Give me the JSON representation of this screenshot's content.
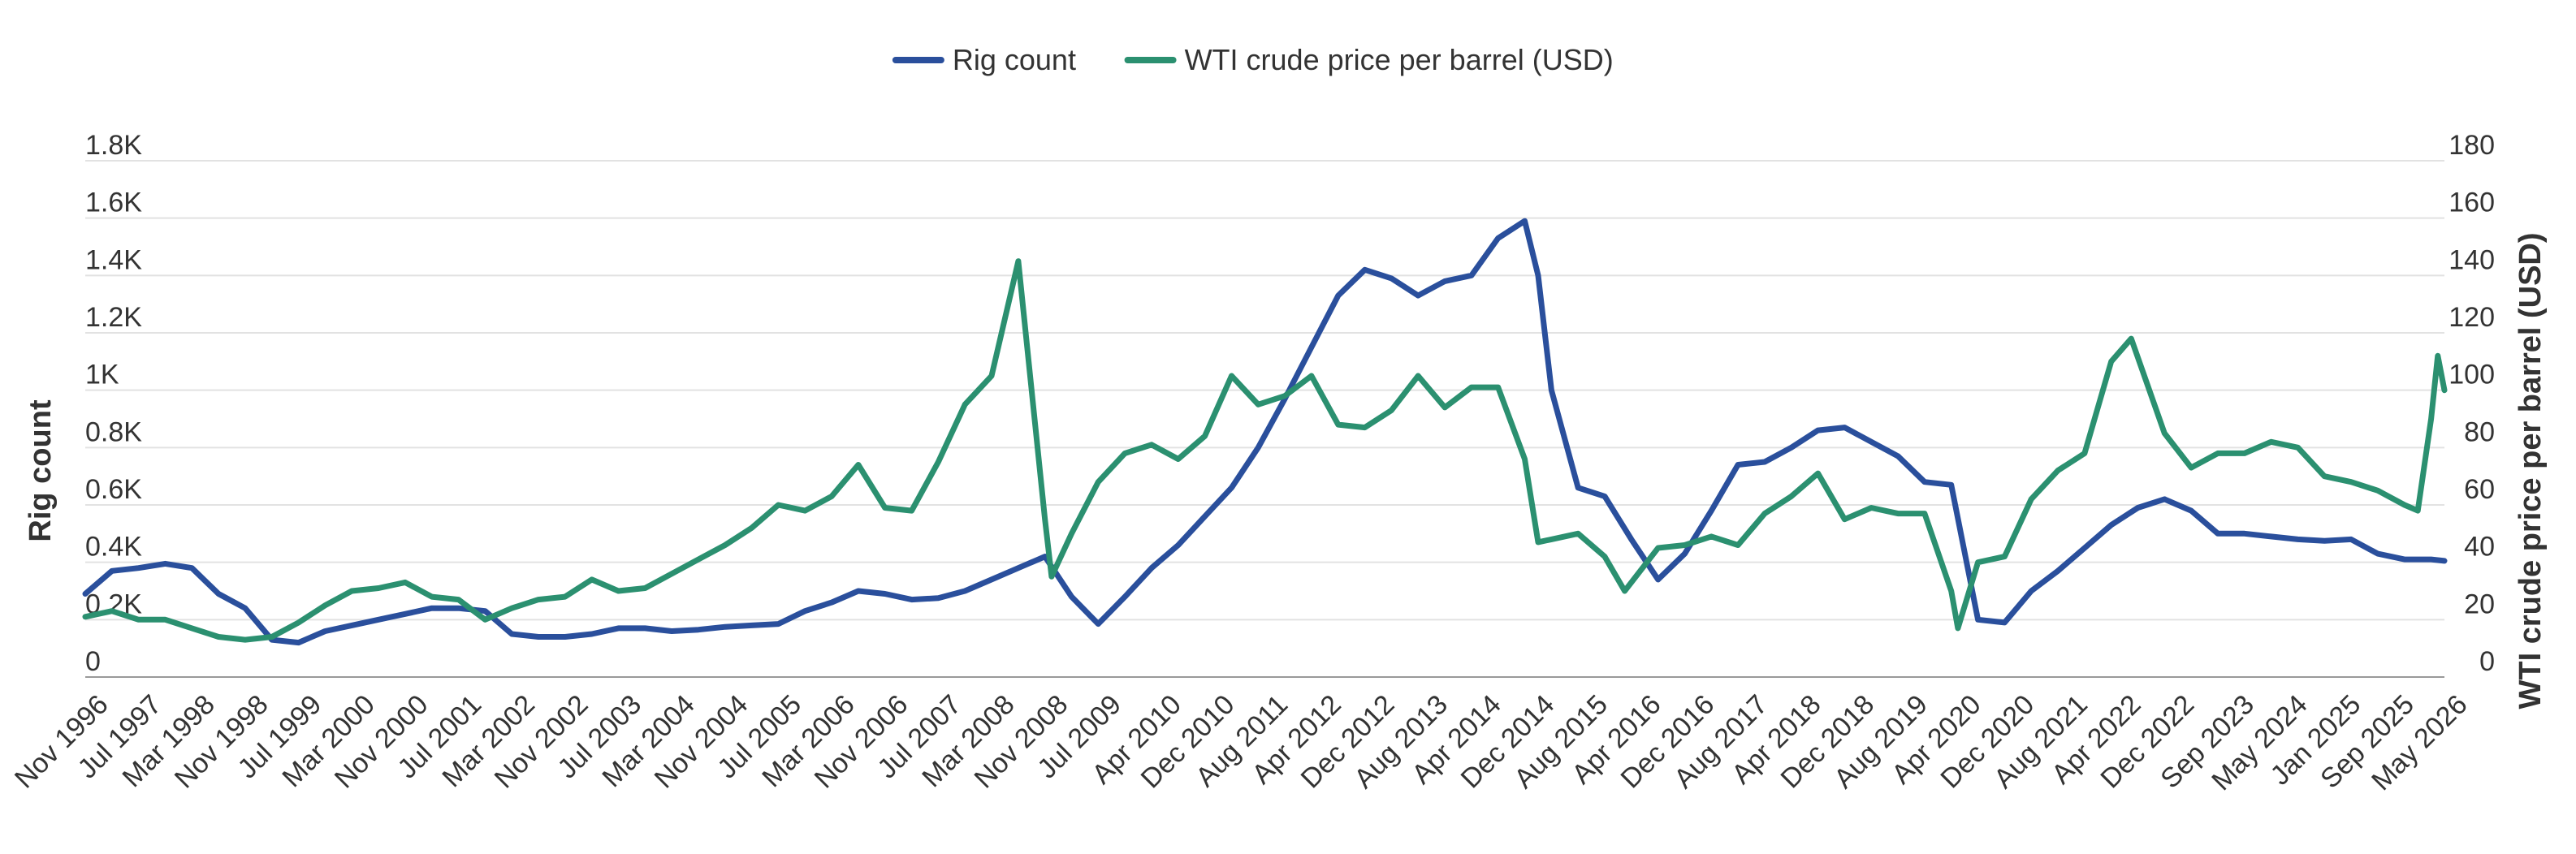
{
  "chart_data": {
    "type": "line",
    "title": "",
    "legend_position": "top-center",
    "grid": true,
    "series": [
      {
        "name": "Rig count",
        "axis": "left",
        "color": "#2a4f9c",
        "points": [
          [
            "Nov 1996",
            290
          ],
          [
            "Mar 1997",
            370
          ],
          [
            "Jul 1997",
            380
          ],
          [
            "Nov 1997",
            395
          ],
          [
            "Mar 1998",
            380
          ],
          [
            "Jul 1998",
            290
          ],
          [
            "Nov 1998",
            240
          ],
          [
            "Mar 1999",
            130
          ],
          [
            "Jul 1999",
            120
          ],
          [
            "Nov 1999",
            160
          ],
          [
            "Mar 2000",
            180
          ],
          [
            "Jul 2000",
            200
          ],
          [
            "Nov 2000",
            220
          ],
          [
            "Mar 2001",
            240
          ],
          [
            "Jul 2001",
            240
          ],
          [
            "Nov 2001",
            230
          ],
          [
            "Mar 2002",
            150
          ],
          [
            "Jul 2002",
            140
          ],
          [
            "Nov 2002",
            140
          ],
          [
            "Mar 2003",
            150
          ],
          [
            "Jul 2003",
            170
          ],
          [
            "Nov 2003",
            170
          ],
          [
            "Mar 2004",
            160
          ],
          [
            "Jul 2004",
            165
          ],
          [
            "Nov 2004",
            175
          ],
          [
            "Mar 2005",
            180
          ],
          [
            "Jul 2005",
            185
          ],
          [
            "Nov 2005",
            230
          ],
          [
            "Mar 2006",
            260
          ],
          [
            "Jul 2006",
            300
          ],
          [
            "Nov 2006",
            290
          ],
          [
            "Mar 2007",
            270
          ],
          [
            "Jul 2007",
            275
          ],
          [
            "Nov 2007",
            300
          ],
          [
            "Mar 2008",
            340
          ],
          [
            "Jul 2008",
            380
          ],
          [
            "Nov 2008",
            420
          ],
          [
            "Mar 2009",
            280
          ],
          [
            "Jul 2009",
            185
          ],
          [
            "Nov 2009",
            280
          ],
          [
            "Mar 2010",
            380
          ],
          [
            "Jul 2010",
            460
          ],
          [
            "Nov 2010",
            560
          ],
          [
            "Mar 2011",
            660
          ],
          [
            "Jul 2011",
            800
          ],
          [
            "Nov 2011",
            970
          ],
          [
            "Mar 2012",
            1150
          ],
          [
            "Jul 2012",
            1330
          ],
          [
            "Nov 2012",
            1420
          ],
          [
            "Mar 2013",
            1390
          ],
          [
            "Jul 2013",
            1330
          ],
          [
            "Nov 2013",
            1380
          ],
          [
            "Mar 2014",
            1400
          ],
          [
            "Jul 2014",
            1530
          ],
          [
            "Nov 2014",
            1590
          ],
          [
            "Jan 2015",
            1400
          ],
          [
            "Mar 2015",
            1000
          ],
          [
            "Jul 2015",
            660
          ],
          [
            "Nov 2015",
            630
          ],
          [
            "Mar 2016",
            480
          ],
          [
            "Jul 2016",
            340
          ],
          [
            "Nov 2016",
            430
          ],
          [
            "Mar 2017",
            580
          ],
          [
            "Jul 2017",
            740
          ],
          [
            "Nov 2017",
            750
          ],
          [
            "Mar 2018",
            800
          ],
          [
            "Jul 2018",
            860
          ],
          [
            "Nov 2018",
            870
          ],
          [
            "Mar 2019",
            820
          ],
          [
            "Jul 2019",
            770
          ],
          [
            "Nov 2019",
            680
          ],
          [
            "Mar 2020",
            670
          ],
          [
            "Jul 2020",
            200
          ],
          [
            "Nov 2020",
            190
          ],
          [
            "Mar 2021",
            300
          ],
          [
            "Jul 2021",
            370
          ],
          [
            "Nov 2021",
            450
          ],
          [
            "Mar 2022",
            530
          ],
          [
            "Jul 2022",
            590
          ],
          [
            "Nov 2022",
            620
          ],
          [
            "Mar 2023",
            580
          ],
          [
            "Jul 2023",
            500
          ],
          [
            "Nov 2023",
            500
          ],
          [
            "Mar 2024",
            490
          ],
          [
            "Jul 2024",
            480
          ],
          [
            "Nov 2024",
            475
          ],
          [
            "Mar 2025",
            480
          ],
          [
            "Jul 2025",
            430
          ],
          [
            "Nov 2025",
            410
          ],
          [
            "Mar 2026",
            410
          ],
          [
            "May 2026",
            405
          ]
        ]
      },
      {
        "name": "WTI crude price per barrel (USD)",
        "axis": "right",
        "color": "#2b9070",
        "points": [
          [
            "Nov 1996",
            21
          ],
          [
            "Mar 1997",
            23
          ],
          [
            "Jul 1997",
            20
          ],
          [
            "Nov 1997",
            20
          ],
          [
            "Mar 1998",
            17
          ],
          [
            "Jul 1998",
            14
          ],
          [
            "Nov 1998",
            13
          ],
          [
            "Mar 1999",
            14
          ],
          [
            "Jul 1999",
            19
          ],
          [
            "Nov 1999",
            25
          ],
          [
            "Mar 2000",
            30
          ],
          [
            "Jul 2000",
            31
          ],
          [
            "Nov 2000",
            33
          ],
          [
            "Mar 2001",
            28
          ],
          [
            "Jul 2001",
            27
          ],
          [
            "Nov 2001",
            20
          ],
          [
            "Mar 2002",
            24
          ],
          [
            "Jul 2002",
            27
          ],
          [
            "Nov 2002",
            28
          ],
          [
            "Mar 2003",
            34
          ],
          [
            "Jul 2003",
            30
          ],
          [
            "Nov 2003",
            31
          ],
          [
            "Mar 2004",
            36
          ],
          [
            "Jul 2004",
            41
          ],
          [
            "Nov 2004",
            46
          ],
          [
            "Mar 2005",
            52
          ],
          [
            "Jul 2005",
            60
          ],
          [
            "Nov 2005",
            58
          ],
          [
            "Mar 2006",
            63
          ],
          [
            "Jul 2006",
            74
          ],
          [
            "Nov 2006",
            59
          ],
          [
            "Mar 2007",
            58
          ],
          [
            "Jul 2007",
            75
          ],
          [
            "Nov 2007",
            95
          ],
          [
            "Mar 2008",
            105
          ],
          [
            "Jul 2008",
            145
          ],
          [
            "Sep 2008",
            100
          ],
          [
            "Nov 2008",
            55
          ],
          [
            "Dec 2008",
            35
          ],
          [
            "Mar 2009",
            50
          ],
          [
            "Jul 2009",
            68
          ],
          [
            "Nov 2009",
            78
          ],
          [
            "Mar 2010",
            81
          ],
          [
            "Jul 2010",
            76
          ],
          [
            "Nov 2010",
            84
          ],
          [
            "Mar 2011",
            105
          ],
          [
            "Jul 2011",
            95
          ],
          [
            "Nov 2011",
            98
          ],
          [
            "Mar 2012",
            105
          ],
          [
            "Jul 2012",
            88
          ],
          [
            "Nov 2012",
            87
          ],
          [
            "Mar 2013",
            93
          ],
          [
            "Jul 2013",
            105
          ],
          [
            "Nov 2013",
            94
          ],
          [
            "Mar 2014",
            101
          ],
          [
            "Jul 2014",
            101
          ],
          [
            "Nov 2014",
            76
          ],
          [
            "Jan 2015",
            47
          ],
          [
            "Mar 2015",
            48
          ],
          [
            "Jul 2015",
            50
          ],
          [
            "Nov 2015",
            42
          ],
          [
            "Feb 2016",
            30
          ],
          [
            "Jul 2016",
            45
          ],
          [
            "Nov 2016",
            46
          ],
          [
            "Mar 2017",
            49
          ],
          [
            "Jul 2017",
            46
          ],
          [
            "Nov 2017",
            57
          ],
          [
            "Mar 2018",
            63
          ],
          [
            "Jul 2018",
            71
          ],
          [
            "Nov 2018",
            55
          ],
          [
            "Mar 2019",
            59
          ],
          [
            "Jul 2019",
            57
          ],
          [
            "Nov 2019",
            57
          ],
          [
            "Mar 2020",
            30
          ],
          [
            "Apr 2020",
            17
          ],
          [
            "Jul 2020",
            40
          ],
          [
            "Nov 2020",
            42
          ],
          [
            "Mar 2021",
            62
          ],
          [
            "Jul 2021",
            72
          ],
          [
            "Nov 2021",
            78
          ],
          [
            "Mar 2022",
            110
          ],
          [
            "Jun 2022",
            118
          ],
          [
            "Nov 2022",
            85
          ],
          [
            "Mar 2023",
            73
          ],
          [
            "Jul 2023",
            78
          ],
          [
            "Nov 2023",
            78
          ],
          [
            "Mar 2024",
            82
          ],
          [
            "Jul 2024",
            80
          ],
          [
            "Nov 2024",
            70
          ],
          [
            "Mar 2025",
            68
          ],
          [
            "Jul 2025",
            65
          ],
          [
            "Nov 2025",
            60
          ],
          [
            "Jan 2026",
            58
          ],
          [
            "Mar 2026",
            90
          ],
          [
            "Apr 2026",
            112
          ],
          [
            "May 2026",
            100
          ]
        ]
      }
    ],
    "y_left": {
      "title": "Rig count",
      "min": 0,
      "max": 1800,
      "ticks": [
        {
          "value": 0,
          "label": "0"
        },
        {
          "value": 200,
          "label": "0.2K"
        },
        {
          "value": 400,
          "label": "0.4K"
        },
        {
          "value": 600,
          "label": "0.6K"
        },
        {
          "value": 800,
          "label": "0.8K"
        },
        {
          "value": 1000,
          "label": "1K"
        },
        {
          "value": 1200,
          "label": "1.2K"
        },
        {
          "value": 1400,
          "label": "1.4K"
        },
        {
          "value": 1600,
          "label": "1.6K"
        },
        {
          "value": 1800,
          "label": "1.8K"
        }
      ]
    },
    "y_right": {
      "title": "WTI crude price per barrel (USD)",
      "min": 0,
      "max": 180,
      "ticks": [
        {
          "value": 0,
          "label": "0"
        },
        {
          "value": 20,
          "label": "20"
        },
        {
          "value": 40,
          "label": "40"
        },
        {
          "value": 60,
          "label": "60"
        },
        {
          "value": 80,
          "label": "80"
        },
        {
          "value": 100,
          "label": "100"
        },
        {
          "value": 120,
          "label": "120"
        },
        {
          "value": 140,
          "label": "140"
        },
        {
          "value": 160,
          "label": "160"
        },
        {
          "value": 180,
          "label": "180"
        }
      ]
    },
    "x_axis": {
      "min": "Nov 1996",
      "max": "May 2026",
      "tick_labels": [
        "Nov 1996",
        "Jul 1997",
        "Mar 1998",
        "Nov 1998",
        "Jul 1999",
        "Mar 2000",
        "Nov 2000",
        "Jul 2001",
        "Mar 2002",
        "Nov 2002",
        "Jul 2003",
        "Mar 2004",
        "Nov 2004",
        "Jul 2005",
        "Mar 2006",
        "Nov 2006",
        "Jul 2007",
        "Mar 2008",
        "Nov 2008",
        "Jul 2009",
        "Apr 2010",
        "Dec 2010",
        "Aug 2011",
        "Apr 2012",
        "Dec 2012",
        "Aug 2013",
        "Apr 2014",
        "Dec 2014",
        "Aug 2015",
        "Apr 2016",
        "Dec 2016",
        "Aug 2017",
        "Apr 2018",
        "Dec 2018",
        "Aug 2019",
        "Apr 2020",
        "Dec 2020",
        "Aug 2021",
        "Apr 2022",
        "Dec 2022",
        "Sep 2023",
        "May 2024",
        "Jan 2025",
        "Sep 2025",
        "May 2026"
      ]
    }
  }
}
